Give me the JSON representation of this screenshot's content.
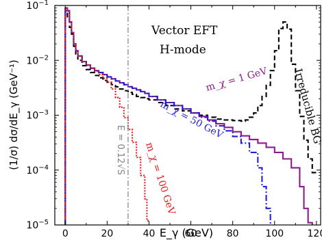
{
  "chart_data": {
    "type": "line",
    "title": "",
    "xlabel": "E_γ (GeV)",
    "ylabel": "(1/σ) dσ/dE_γ (GeV⁻¹)",
    "xlim": [
      -5,
      122
    ],
    "ylim_log10": [
      -5,
      -1
    ],
    "log_y": true,
    "grid": false,
    "x_ticks": [
      0,
      20,
      40,
      60,
      80,
      100,
      120
    ],
    "x_tick_labels": [
      "0",
      "20",
      "40",
      "60",
      "80",
      "100",
      "120"
    ],
    "y_ticks": [
      1e-05,
      0.0001,
      0.001,
      0.01,
      0.1
    ],
    "y_tick_labels": [
      {
        "base": "10",
        "exp": "−5"
      },
      {
        "base": "10",
        "exp": "−4"
      },
      {
        "base": "10",
        "exp": "−3"
      },
      {
        "base": "10",
        "exp": "−2"
      },
      {
        "base": "10",
        "exp": "−1"
      }
    ],
    "annotations": {
      "model": "Vector EFT",
      "mode": "H-mode",
      "bg": "Irreducible BG",
      "cut": "E = 0.12√S",
      "mx1": "m_χ = 1 GeV",
      "mx50": "m_χ = 50 GeV",
      "mx100": "m_χ = 100 GeV"
    },
    "cut_line_x": 30,
    "series": [
      {
        "name": "Irreducible BG",
        "color": "#000000",
        "dash": "7,4",
        "bin_edges": [
          0,
          1,
          2,
          3,
          4,
          5,
          6,
          8,
          10,
          12,
          14,
          16,
          18,
          20,
          22,
          24,
          26,
          28,
          30,
          32,
          34,
          36,
          38,
          40,
          44,
          48,
          52,
          56,
          60,
          64,
          68,
          72,
          76,
          80,
          84,
          86,
          88,
          90,
          92,
          94,
          96,
          98,
          100,
          102,
          104,
          106,
          108,
          110,
          112,
          114,
          116,
          118,
          120
        ],
        "values": [
          0.08,
          0.06,
          0.04,
          0.03,
          0.018,
          0.013,
          0.01,
          0.008,
          0.0068,
          0.006,
          0.0053,
          0.0048,
          0.0043,
          0.004,
          0.0036,
          0.0033,
          0.003,
          0.0028,
          0.0026,
          0.0024,
          0.0022,
          0.0021,
          0.002,
          0.0019,
          0.0017,
          0.0015,
          0.0013,
          0.0012,
          0.0011,
          0.001,
          0.00092,
          0.00085,
          0.00082,
          0.0008,
          0.00078,
          0.00082,
          0.00092,
          0.0011,
          0.0015,
          0.0022,
          0.0035,
          0.0065,
          0.015,
          0.038,
          0.05,
          0.037,
          0.0085,
          0.0028,
          0.00095,
          0.00035,
          0.00016,
          9e-05
        ]
      },
      {
        "name": "m_χ = 1 GeV",
        "color": "#8b1a8b",
        "dash": "",
        "bin_edges": [
          0,
          1,
          2,
          3,
          4,
          5,
          6,
          8,
          10,
          12,
          14,
          16,
          18,
          20,
          22,
          24,
          26,
          28,
          30,
          32,
          34,
          36,
          38,
          40,
          44,
          48,
          52,
          56,
          60,
          64,
          68,
          72,
          76,
          80,
          84,
          88,
          92,
          96,
          100,
          104,
          108,
          112,
          114,
          116,
          118,
          120
        ],
        "values": [
          0.09,
          0.08,
          0.05,
          0.032,
          0.02,
          0.015,
          0.012,
          0.0095,
          0.0082,
          0.0072,
          0.0065,
          0.006,
          0.0055,
          0.005,
          0.0046,
          0.0042,
          0.0039,
          0.0036,
          0.0033,
          0.0031,
          0.0029,
          0.0027,
          0.0025,
          0.0022,
          0.0019,
          0.0017,
          0.0015,
          0.0013,
          0.0011,
          0.00095,
          0.00082,
          0.0007,
          0.0006,
          0.0005,
          0.00042,
          0.00036,
          0.00031,
          0.00026,
          0.00021,
          0.00016,
          0.00011,
          5e-05,
          2e-05,
          1.1e-05,
          9e-06
        ]
      },
      {
        "name": "m_χ = 50 GeV",
        "color": "#1f1fd6",
        "dash": "9,3,2,3",
        "bin_edges": [
          0,
          1,
          2,
          3,
          4,
          5,
          6,
          8,
          10,
          12,
          14,
          16,
          18,
          20,
          22,
          24,
          26,
          28,
          30,
          32,
          34,
          36,
          38,
          40,
          44,
          48,
          52,
          56,
          60,
          64,
          68,
          72,
          76,
          80,
          84,
          88,
          92,
          94,
          96,
          98,
          100
        ],
        "values": [
          0.09,
          0.08,
          0.05,
          0.032,
          0.02,
          0.015,
          0.012,
          0.0095,
          0.0082,
          0.0072,
          0.0065,
          0.006,
          0.0055,
          0.005,
          0.0046,
          0.0042,
          0.0039,
          0.0036,
          0.0033,
          0.0031,
          0.0029,
          0.0027,
          0.0025,
          0.0022,
          0.0019,
          0.0017,
          0.0015,
          0.0013,
          0.0011,
          0.00092,
          0.00078,
          0.00064,
          0.00052,
          0.00041,
          0.00031,
          0.00021,
          0.00011,
          5e-05,
          2e-05,
          9e-06
        ]
      },
      {
        "name": "m_χ = 100 GeV",
        "color": "#e31a1a",
        "dash": "2,2",
        "bin_edges": [
          0,
          1,
          2,
          3,
          4,
          5,
          6,
          8,
          10,
          12,
          14,
          16,
          18,
          20,
          22,
          24,
          26,
          28,
          30,
          32,
          34,
          36,
          38,
          39,
          40
        ],
        "values": [
          0.09,
          0.08,
          0.05,
          0.032,
          0.02,
          0.015,
          0.012,
          0.0095,
          0.0082,
          0.0072,
          0.0063,
          0.0055,
          0.0047,
          0.004,
          0.003,
          0.0021,
          0.0014,
          0.0009,
          0.00055,
          0.00032,
          0.00017,
          8e-05,
          3e-05,
          1.2e-05
        ]
      }
    ]
  }
}
